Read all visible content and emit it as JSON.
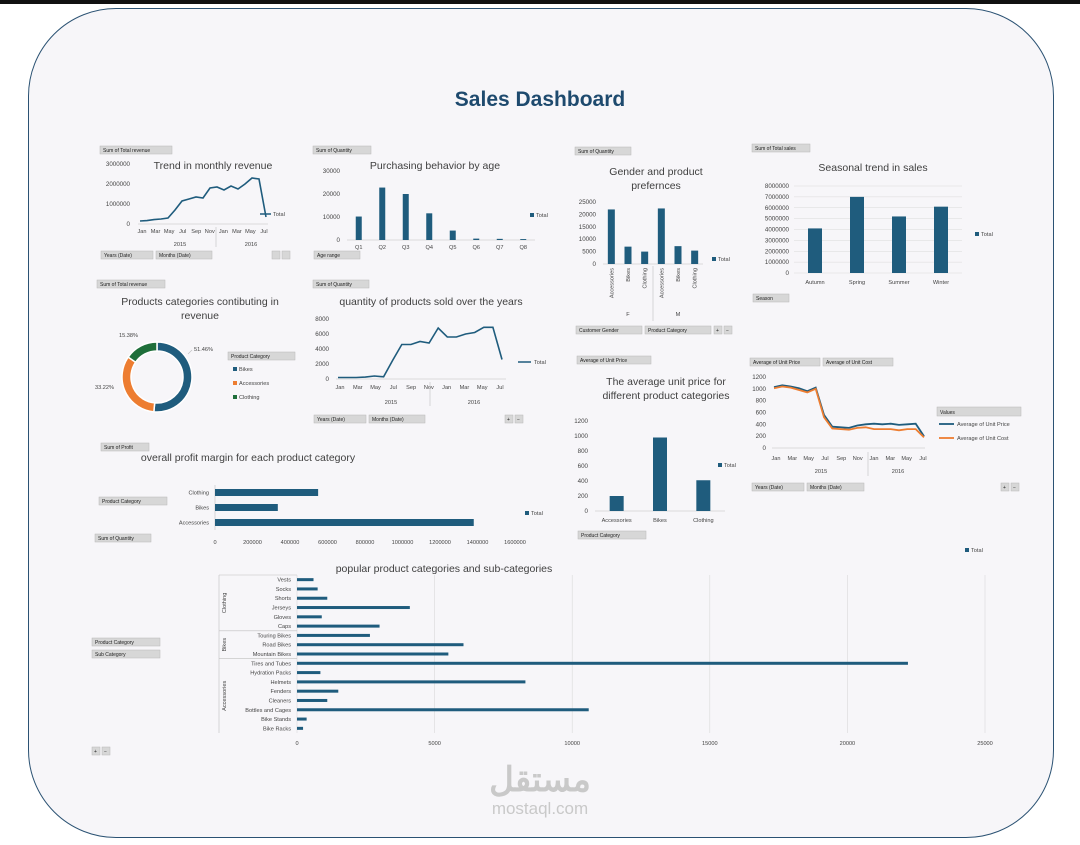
{
  "dashboard": {
    "title": "Sales Dashboard"
  },
  "colors": {
    "primary": "#1f5c7d",
    "accessories": "#ed7d31",
    "clothing": "#1e6e3a",
    "frame": "#2b5273"
  },
  "watermark": {
    "arabic": "مستقل",
    "latin": "mostaql.com"
  },
  "charts": {
    "monthly": {
      "field_button": "Sum of Total revenue",
      "title": "Trend in monthly revenue",
      "y_ticks": [
        "3000000",
        "2000000",
        "1000000",
        "0"
      ],
      "x_labels": [
        "Jan",
        "Mar",
        "May",
        "Jul",
        "Sep",
        "Nov",
        "Jan",
        "Mar",
        "May",
        "Jul"
      ],
      "year_labels": [
        "2015",
        "2016"
      ],
      "legend": "Total",
      "filters": [
        "Years (Date)",
        "Months (Date)"
      ]
    },
    "age": {
      "field_button": "Sum of Quantity",
      "title": "Purchasing behavior  by age",
      "y_ticks": [
        "30000",
        "20000",
        "10000",
        "0"
      ],
      "categories": [
        "Q1",
        "Q2",
        "Q3",
        "Q4",
        "Q5",
        "Q6",
        "Q7",
        "Q8"
      ],
      "legend": "Total",
      "filters": [
        "Age range"
      ]
    },
    "gender": {
      "field_button": "Sum of Quantity",
      "title_line1": "Gender and product",
      "title_line2": "prefernces",
      "y_ticks": [
        "25000",
        "20000",
        "15000",
        "10000",
        "5000",
        "0"
      ],
      "categories": [
        "Accessories",
        "Bikes",
        "Clothing",
        "Accessories",
        "Bikes",
        "Clothing"
      ],
      "groups": [
        "F",
        "M"
      ],
      "legend": "Total",
      "filters": [
        "Customer Gender",
        "Product Category"
      ]
    },
    "season": {
      "field_button": "Sum of Total sales",
      "title": "Seasonal trend in sales",
      "y_ticks": [
        "8000000",
        "7000000",
        "6000000",
        "5000000",
        "4000000",
        "3000000",
        "2000000",
        "1000000",
        "0"
      ],
      "categories": [
        "Autumn",
        "Spring",
        "Summer",
        "Winter"
      ],
      "legend": "Total",
      "filters": [
        "Season"
      ]
    },
    "donut": {
      "field_button": "Sum of Total revenue",
      "title_line1": "Products categories contibuting in",
      "title_line2": "revenue",
      "labels_pct": [
        "51.46%",
        "33.22%",
        "15.38%"
      ],
      "legend_title": "Product Category",
      "legend": [
        "Bikes",
        "Accessories",
        "Clothing"
      ]
    },
    "qtyyears": {
      "field_button": "Sum of Quantity",
      "title": "quantity of products sold over the years",
      "y_ticks": [
        "8000",
        "6000",
        "4000",
        "2000",
        "0"
      ],
      "x_labels": [
        "Jan",
        "Mar",
        "May",
        "Jul",
        "Sep",
        "Nov",
        "Jan",
        "Mar",
        "May",
        "Jul"
      ],
      "year_labels": [
        "2015",
        "2016"
      ],
      "legend": "Total",
      "filters": [
        "Years (Date)",
        "Months (Date)"
      ]
    },
    "unitprice": {
      "field_button": "Average of Unit Price",
      "title_line1": "The average unit price for",
      "title_line2": "different product categories",
      "y_ticks": [
        "1200",
        "1000",
        "800",
        "600",
        "400",
        "200",
        "0"
      ],
      "categories": [
        "Accessories",
        "Bikes",
        "Clothing"
      ],
      "legend": "Total",
      "filters": [
        "Product Category"
      ]
    },
    "pricecost": {
      "field_buttons": [
        "Average of Unit Price",
        "Average of Unit Cost"
      ],
      "y_ticks": [
        "1200",
        "1000",
        "800",
        "600",
        "400",
        "200",
        "0"
      ],
      "x_labels": [
        "Jan",
        "Mar",
        "May",
        "Jul",
        "Sep",
        "Nov",
        "Jan",
        "Mar",
        "May",
        "Jul"
      ],
      "year_labels": [
        "2015",
        "2016"
      ],
      "legend_title": "Values",
      "legend": [
        "Average of Unit Price",
        "Average of Unit Cost"
      ],
      "filters": [
        "Years (Date)",
        "Months (Date)"
      ]
    },
    "profit": {
      "field_button": "Sum of Profit",
      "title": "overall profit margin for each product category",
      "categories": [
        "Clothing",
        "Bikes",
        "Accessories"
      ],
      "x_ticks": [
        "0",
        "200000",
        "400000",
        "600000",
        "800000",
        "1000000",
        "1200000",
        "1400000",
        "1600000"
      ],
      "legend": "Total",
      "filters": [
        "Product Category"
      ]
    },
    "subcat": {
      "field_button": "Sum of Quantity",
      "title": "popular product categories and sub-categories",
      "x_ticks": [
        "0",
        "5000",
        "10000",
        "15000",
        "20000",
        "25000"
      ],
      "groups": [
        "Clothing",
        "Bikes",
        "Accessories"
      ],
      "legend": "Total",
      "filters": [
        "Product Category",
        "Sub Category"
      ]
    }
  },
  "chart_data": [
    {
      "type": "line",
      "title": "Trend in monthly revenue",
      "ylim": [
        0,
        3000000
      ],
      "x": [
        "2015-Jan",
        "2015-Feb",
        "2015-Mar",
        "2015-Apr",
        "2015-May",
        "2015-Jun",
        "2015-Jul",
        "2015-Aug",
        "2015-Sep",
        "2015-Oct",
        "2015-Nov",
        "2015-Dec",
        "2016-Jan",
        "2016-Feb",
        "2016-Mar",
        "2016-Apr",
        "2016-May",
        "2016-Jun",
        "2016-Jul"
      ],
      "series": [
        {
          "name": "Total",
          "values": [
            150000,
            170000,
            220000,
            250000,
            300000,
            700000,
            1150000,
            1250000,
            1350000,
            1300000,
            1800000,
            1850000,
            1700000,
            1900000,
            1750000,
            2000000,
            2300000,
            2250000,
            350000
          ]
        }
      ]
    },
    {
      "type": "bar",
      "title": "Purchasing behavior  by age",
      "ylim": [
        0,
        30000
      ],
      "categories": [
        "Q1",
        "Q2",
        "Q3",
        "Q4",
        "Q5",
        "Q6",
        "Q7",
        "Q8"
      ],
      "values": [
        10200,
        22800,
        20000,
        11600,
        4100,
        600,
        500,
        400
      ]
    },
    {
      "type": "bar",
      "title": "Gender and product prefernces",
      "ylim": [
        0,
        25000
      ],
      "categories": [
        "F-Accessories",
        "F-Bikes",
        "F-Clothing",
        "M-Accessories",
        "M-Bikes",
        "M-Clothing"
      ],
      "values": [
        22000,
        7000,
        5000,
        22400,
        7200,
        5400
      ]
    },
    {
      "type": "bar",
      "title": "Seasonal trend in sales",
      "ylim": [
        0,
        8000000
      ],
      "categories": [
        "Autumn",
        "Spring",
        "Summer",
        "Winter"
      ],
      "values": [
        4100000,
        7000000,
        5200000,
        6100000
      ]
    },
    {
      "type": "pie",
      "title": "Products categories contibuting in revenue",
      "categories": [
        "Bikes",
        "Accessories",
        "Clothing"
      ],
      "values": [
        51.46,
        33.22,
        15.38
      ]
    },
    {
      "type": "line",
      "title": "quantity of products sold over the years",
      "ylim": [
        0,
        8000
      ],
      "x": [
        "2015-Jan",
        "2015-Feb",
        "2015-Mar",
        "2015-Apr",
        "2015-May",
        "2015-Jun",
        "2015-Jul",
        "2015-Aug",
        "2015-Sep",
        "2015-Oct",
        "2015-Nov",
        "2015-Dec",
        "2016-Jan",
        "2016-Feb",
        "2016-Mar",
        "2016-Apr",
        "2016-May",
        "2016-Jun",
        "2016-Jul"
      ],
      "series": [
        {
          "name": "Total",
          "values": [
            200,
            200,
            200,
            250,
            400,
            300,
            2500,
            4600,
            4600,
            5000,
            4800,
            6800,
            5600,
            5600,
            6000,
            6200,
            6900,
            6900,
            2600
          ]
        }
      ]
    },
    {
      "type": "bar",
      "title": "The average unit price for different product categories",
      "ylim": [
        0,
        1200
      ],
      "categories": [
        "Accessories",
        "Bikes",
        "Clothing"
      ],
      "values": [
        200,
        980,
        410
      ]
    },
    {
      "type": "line",
      "ylim": [
        0,
        1200
      ],
      "x": [
        "2015-Jan",
        "2015-Feb",
        "2015-Mar",
        "2015-Apr",
        "2015-May",
        "2015-Jun",
        "2015-Jul",
        "2015-Aug",
        "2015-Sep",
        "2015-Oct",
        "2015-Nov",
        "2015-Dec",
        "2016-Jan",
        "2016-Feb",
        "2016-Mar",
        "2016-Apr",
        "2016-May",
        "2016-Jun",
        "2016-Jul"
      ],
      "series": [
        {
          "name": "Average of Unit Price",
          "values": [
            1030,
            1060,
            1040,
            1010,
            960,
            1020,
            560,
            360,
            350,
            340,
            380,
            400,
            410,
            400,
            410,
            390,
            400,
            410,
            200
          ]
        },
        {
          "name": "Average of Unit Cost",
          "values": [
            1010,
            1040,
            1020,
            980,
            940,
            1000,
            520,
            330,
            320,
            310,
            340,
            350,
            320,
            320,
            320,
            300,
            320,
            320,
            180
          ]
        }
      ]
    },
    {
      "type": "bar",
      "title": "overall profit margin for each product category",
      "xlim": [
        0,
        1600000
      ],
      "categories": [
        "Clothing",
        "Bikes",
        "Accessories"
      ],
      "values": [
        550000,
        335000,
        1380000
      ]
    },
    {
      "type": "bar",
      "title": "popular product categories and sub-categories",
      "xlim": [
        0,
        25000
      ],
      "categories": [
        "Vests",
        "Socks",
        "Shorts",
        "Jerseys",
        "Gloves",
        "Caps",
        "Touring Bikes",
        "Road Bikes",
        "Mountain Bikes",
        "Tires and Tubes",
        "Hydration Packs",
        "Helmets",
        "Fenders",
        "Cleaners",
        "Bottles and Cages",
        "Bike Stands",
        "Bike Racks"
      ],
      "groups": [
        "Clothing",
        "Clothing",
        "Clothing",
        "Clothing",
        "Clothing",
        "Clothing",
        "Bikes",
        "Bikes",
        "Bikes",
        "Accessories",
        "Accessories",
        "Accessories",
        "Accessories",
        "Accessories",
        "Accessories",
        "Accessories",
        "Accessories"
      ],
      "values": [
        600,
        750,
        1100,
        4100,
        900,
        3000,
        2650,
        6050,
        5500,
        22200,
        850,
        8300,
        1500,
        1100,
        10600,
        350,
        220
      ]
    }
  ]
}
